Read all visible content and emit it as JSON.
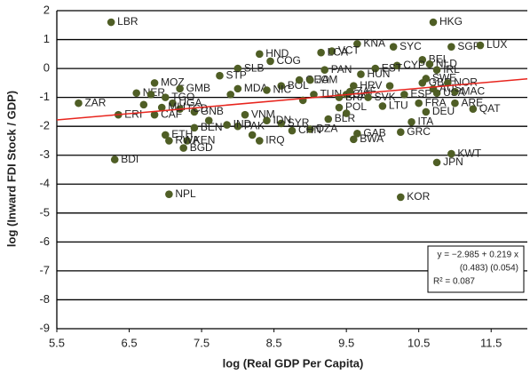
{
  "chart_data": {
    "type": "scatter",
    "x_label": "log (Real GDP Per Capita)",
    "y_label": "log (Inward FDI Stock / GDP)",
    "xlim": [
      5.5,
      12
    ],
    "ylim": [
      -9,
      2
    ],
    "xticks": [
      5.5,
      6.5,
      7.5,
      8.5,
      9.5,
      10.5,
      11.5
    ],
    "yticks": [
      -9,
      -8,
      -7,
      -6,
      -5,
      -4,
      -3,
      -2,
      -1,
      0,
      1,
      2
    ],
    "grid": true,
    "series": [
      {
        "color": "#4f5e25",
        "x": [
          6.25,
          10.7,
          9.65,
          10.15,
          10.95,
          11.35,
          9.3,
          9.15,
          8.3,
          8.45,
          10.55,
          10.65,
          10.2,
          9.9,
          9.2,
          8.0,
          9.7,
          10.6,
          10.75,
          10.55,
          7.75,
          6.85,
          6.6,
          6.8,
          7.2,
          8.0,
          8.6,
          8.4,
          8.85,
          9.0,
          9.05,
          9.5,
          9.4,
          9.55,
          10.3,
          10.75,
          11.0,
          11.25,
          11.0,
          10.6,
          10.0,
          10.4,
          9.25,
          9.4,
          9.65,
          9.6,
          10.25,
          9.0,
          8.75,
          8.6,
          8.4,
          8.1,
          8.0,
          7.85,
          8.3,
          7.4,
          7.3,
          7.05,
          7.25,
          7.0,
          7.4,
          7.2,
          7.1,
          7.0,
          6.95,
          6.85,
          6.35,
          5.8,
          6.3,
          7.05,
          10.25,
          10.75,
          10.95,
          9.6,
          9.8,
          10.5,
          10.7,
          10.9,
          7.6,
          8.2,
          9.5,
          8.9,
          6.7,
          7.9,
          10.1
        ],
        "values": [
          1.6,
          1.6,
          0.85,
          0.75,
          0.75,
          0.8,
          0.6,
          0.55,
          0.5,
          0.25,
          0.3,
          0.15,
          0.1,
          0.0,
          -0.05,
          0.0,
          -0.2,
          -0.35,
          -0.05,
          -0.5,
          -0.25,
          -0.5,
          -0.85,
          -0.9,
          -0.7,
          -0.7,
          -0.6,
          -0.75,
          -0.4,
          -0.4,
          -0.9,
          -0.9,
          -1.0,
          -0.8,
          -0.9,
          -0.85,
          -0.8,
          -1.4,
          -1.2,
          -1.5,
          -1.3,
          -1.85,
          -1.75,
          -1.35,
          -2.25,
          -2.45,
          -2.2,
          -2.1,
          -2.15,
          -1.9,
          -1.8,
          -1.6,
          -2.0,
          -1.95,
          -2.5,
          -2.05,
          -2.5,
          -2.5,
          -2.75,
          -2.3,
          -1.5,
          -1.4,
          -1.2,
          -1.0,
          -1.35,
          -1.6,
          -1.6,
          -1.2,
          -3.15,
          -4.35,
          -4.45,
          -3.25,
          -2.95,
          -0.6,
          -1.0,
          -1.2,
          -0.7,
          -0.5,
          -1.8,
          -2.3,
          -1.55,
          -1.1,
          -1.25,
          -0.9,
          -0.6
        ],
        "labels": [
          "LBR",
          "HKG",
          "KNA",
          "SYC",
          "SGP",
          "LUX",
          "VCT",
          "LCA",
          "HND",
          "COG",
          "BEL",
          "NLD",
          "CYP",
          "EST",
          "PAN",
          "SLB",
          "HUN",
          "SWE",
          "IRL",
          "GBR",
          "STP",
          "MOZ",
          "NER",
          null,
          "GMB",
          "MDA",
          "BOL",
          "NIC",
          "GEO",
          "JAM",
          "TUN",
          "CHL",
          "BRA",
          "ZAF",
          "ESP",
          "USA",
          "MAC",
          "QAT",
          "ARE",
          "DEU",
          "LTU",
          "ITA",
          "BLR",
          "POL",
          "GAB",
          "BWA",
          "GRC",
          "DZA",
          "CHN",
          "SYR",
          "IDN",
          "VNM",
          "PAK",
          "IND",
          "IRQ",
          "BEN",
          "KEN",
          "RWA",
          "BGD",
          "ETH",
          "GNB",
          "TCD",
          "UGA",
          "TGO",
          "MLI",
          "CAF",
          "ERI",
          "ZAR",
          "BDI",
          "NPL",
          "KOR",
          "JPN",
          "KWT",
          "HRV",
          "SVK",
          "FRA",
          "AUS",
          "NOR",
          null,
          null,
          null,
          null,
          null,
          null,
          null
        ]
      }
    ],
    "trendline": {
      "color": "#e8251e",
      "x": [
        5.5,
        12
      ],
      "values": [
        -1.781,
        -0.357
      ]
    },
    "annotation_lines": [
      "y = −2.985 + 0.219 x",
      "(0.483)      (0.054)",
      "R² = 0.087"
    ]
  }
}
